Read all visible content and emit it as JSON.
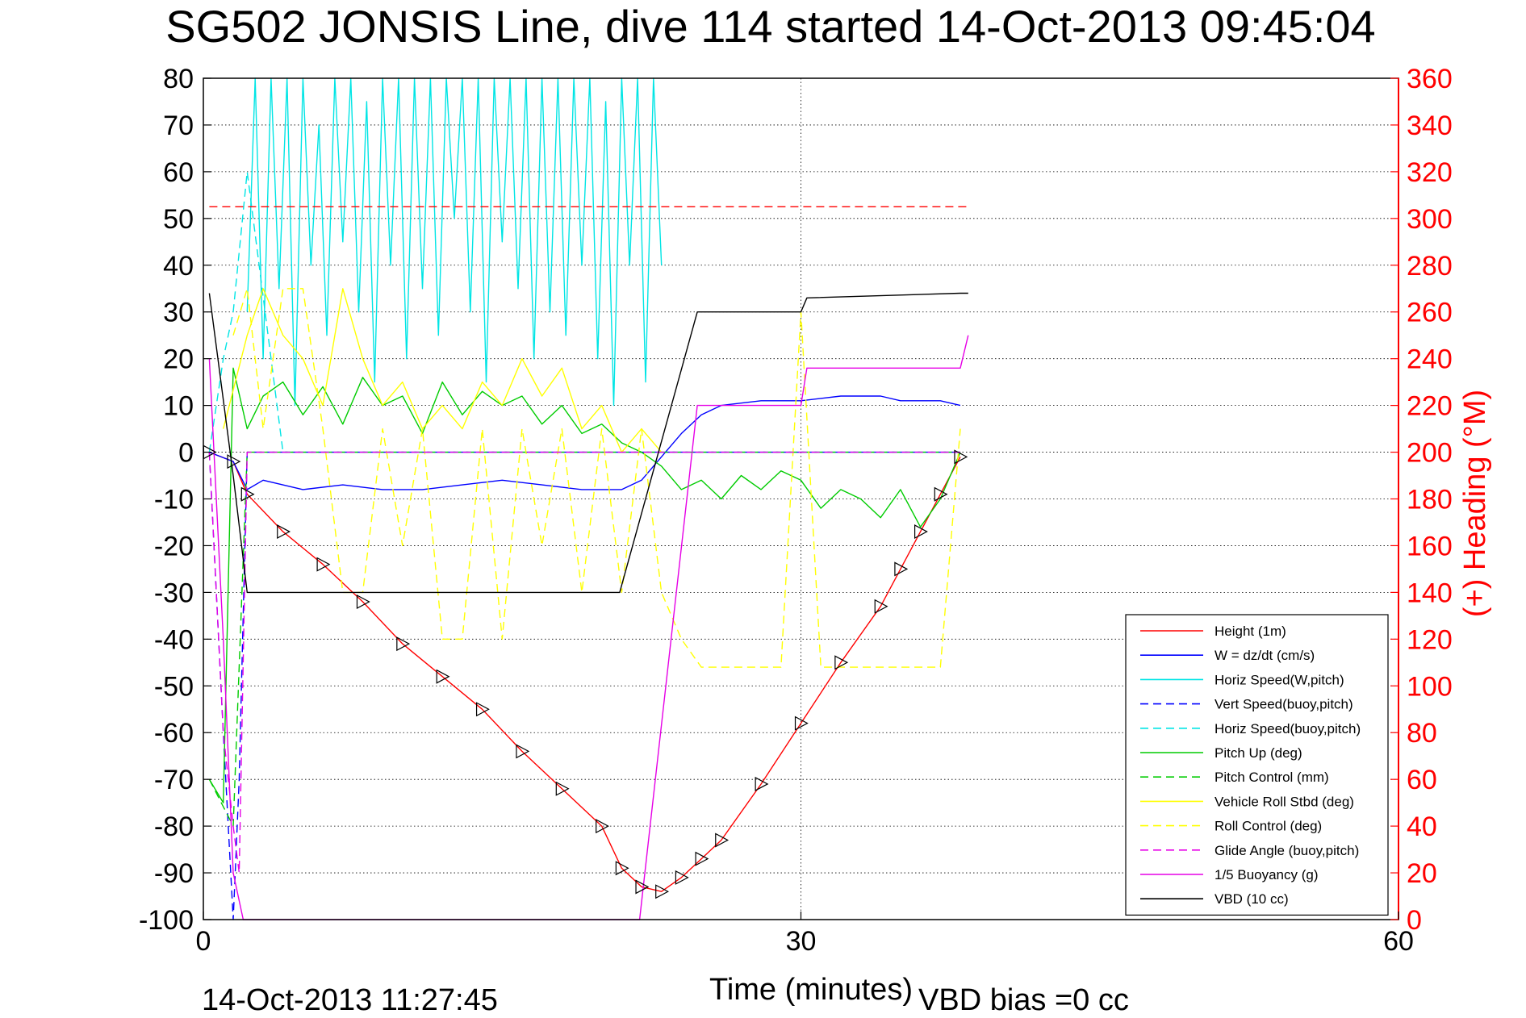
{
  "chart_data": {
    "type": "line",
    "title": "SG502 JONSIS Line, dive 114 started 14-Oct-2013 09:45:04",
    "xlabel": "Time (minutes)",
    "ylabel_right": "(+) Heading (°M)",
    "xlim": [
      0,
      60
    ],
    "ylim": [
      -100,
      80
    ],
    "ylim_right": [
      0,
      360
    ],
    "x_ticks": [
      "0",
      "30",
      "60"
    ],
    "y_ticks": [
      "80",
      "70",
      "60",
      "50",
      "40",
      "30",
      "20",
      "10",
      "0",
      "-10",
      "-20",
      "-30",
      "-40",
      "-50",
      "-60",
      "-70",
      "-80",
      "-90",
      "-100"
    ],
    "y_ticks_right": [
      "360",
      "340",
      "320",
      "300",
      "280",
      "260",
      "240",
      "220",
      "200",
      "180",
      "160",
      "140",
      "120",
      "100",
      "80",
      "60",
      "40",
      "20",
      "0"
    ],
    "grid": true,
    "legend_position": "lower-right",
    "footer_left": "14-Oct-2013 11:27:45",
    "footer_right": "VBD bias =0 cc",
    "series": [
      {
        "name": "Height (1m)",
        "color": "#ff0000",
        "style": "solid",
        "x": [
          0.3,
          1.5,
          2.2,
          4,
          6,
          8,
          10,
          12,
          14,
          16,
          18,
          20,
          21,
          22,
          23,
          24,
          25,
          26,
          28,
          30,
          32,
          34,
          35,
          36,
          37,
          38
        ],
        "y": [
          0,
          -2,
          -9,
          -17,
          -24,
          -32,
          -41,
          -48,
          -55,
          -64,
          -72,
          -80,
          -89,
          -93,
          -94,
          -91,
          -87,
          -83,
          -71,
          -58,
          -45,
          -33,
          -25,
          -17,
          -9,
          -1
        ]
      },
      {
        "name": "W = dz/dt (cm/s)",
        "color": "#0000ff",
        "style": "solid",
        "x": [
          0.3,
          1.5,
          2.2,
          3,
          5,
          7,
          9,
          11,
          13,
          15,
          17,
          19,
          21,
          22,
          23,
          24,
          25,
          26,
          28,
          30,
          32,
          34,
          35,
          36,
          37,
          38
        ],
        "y": [
          0,
          -2,
          -8,
          -6,
          -8,
          -7,
          -8,
          -8,
          -7,
          -6,
          -7,
          -8,
          -8,
          -6,
          -1,
          4,
          8,
          10,
          11,
          11,
          12,
          12,
          11,
          11,
          11,
          10
        ]
      },
      {
        "name": "Horiz Speed(W,pitch)",
        "color": "#00e5e5",
        "style": "solid",
        "x": [
          2.2,
          2.6,
          3.0,
          3.4,
          3.8,
          4.2,
          4.6,
          5.0,
          5.4,
          5.8,
          6.2,
          6.6,
          7.0,
          7.4,
          7.8,
          8.2,
          8.6,
          9.0,
          9.4,
          9.8,
          10.2,
          10.6,
          11.0,
          11.4,
          11.8,
          12.2,
          12.6,
          13.0,
          13.4,
          13.8,
          14.2,
          14.6,
          15.0,
          15.4,
          15.8,
          16.2,
          16.6,
          17.0,
          17.4,
          17.8,
          18.2,
          18.6,
          19.0,
          19.4,
          19.8,
          20.2,
          20.6,
          21.0,
          21.4,
          21.8,
          22.2,
          22.6,
          23.0
        ],
        "y": [
          30,
          80,
          20,
          80,
          35,
          80,
          10,
          80,
          40,
          70,
          25,
          80,
          45,
          80,
          30,
          75,
          15,
          80,
          40,
          80,
          20,
          80,
          35,
          80,
          25,
          80,
          50,
          80,
          30,
          80,
          15,
          80,
          45,
          80,
          35,
          80,
          20,
          80,
          30,
          80,
          25,
          80,
          40,
          80,
          20,
          75,
          10,
          80,
          40,
          80,
          15,
          80,
          40
        ]
      },
      {
        "name": "Vert Speed(buoy,pitch)",
        "color": "#0000ff",
        "style": "dashed",
        "x": [
          0.3,
          1.0,
          1.5,
          1.8,
          2.2,
          4,
          10,
          20,
          30,
          38
        ],
        "y": [
          0,
          -60,
          -100,
          -70,
          0,
          0,
          0,
          0,
          0,
          0
        ]
      },
      {
        "name": "Horiz Speed(buoy,pitch)",
        "color": "#00e5e5",
        "style": "dashed",
        "x": [
          0.3,
          1.0,
          1.5,
          2.2,
          4,
          10,
          20,
          30,
          38
        ],
        "y": [
          0,
          20,
          30,
          60,
          0,
          0,
          0,
          0,
          0
        ]
      },
      {
        "name": "Pitch Up (deg)",
        "color": "#00cc00",
        "style": "solid",
        "x": [
          0.3,
          1.0,
          1.5,
          2.2,
          3,
          4,
          5,
          6,
          7,
          8,
          9,
          10,
          11,
          12,
          13,
          14,
          15,
          16,
          17,
          18,
          19,
          20,
          21,
          22,
          23,
          24,
          25,
          26,
          27,
          28,
          29,
          30,
          31,
          32,
          33,
          34,
          35,
          36,
          37,
          38
        ],
        "y": [
          -70,
          -75,
          18,
          5,
          12,
          15,
          8,
          14,
          6,
          16,
          10,
          12,
          4,
          15,
          8,
          13,
          10,
          12,
          6,
          10,
          4,
          6,
          2,
          0,
          -3,
          -8,
          -6,
          -10,
          -5,
          -8,
          -4,
          -6,
          -12,
          -8,
          -10,
          -14,
          -8,
          -16,
          -10,
          0
        ]
      },
      {
        "name": "Pitch Control (mm)",
        "color": "#00cc00",
        "style": "dashed",
        "x": [
          0.3,
          1.5,
          2.2,
          4,
          10,
          20,
          30,
          38
        ],
        "y": [
          -70,
          -80,
          0,
          0,
          0,
          0,
          0,
          0
        ]
      },
      {
        "name": "Vehicle Roll Stbd (deg)",
        "color": "#ffff00",
        "style": "solid",
        "x": [
          1.0,
          2.2,
          3.0,
          4.0,
          5.0,
          6.0,
          7.0,
          8.0,
          9.0,
          10.0,
          11.0,
          12.0,
          13.0,
          14.0,
          15.0,
          16.0,
          17.0,
          18.0,
          19.0,
          20.0,
          21.0,
          22.0,
          23.0
        ],
        "y": [
          5,
          25,
          35,
          25,
          20,
          10,
          35,
          20,
          10,
          15,
          5,
          10,
          5,
          15,
          10,
          20,
          12,
          18,
          5,
          10,
          0,
          5,
          0
        ]
      },
      {
        "name": "Roll Control (deg)",
        "color": "#ffff00",
        "style": "dashed",
        "x": [
          1.5,
          2.2,
          3.0,
          4.0,
          5.0,
          6.0,
          7.0,
          8.0,
          9.0,
          10.0,
          11.0,
          12.0,
          13.0,
          14.0,
          15.0,
          16.0,
          17.0,
          18.0,
          19.0,
          20.0,
          21.0,
          22.0,
          23.0,
          24.0,
          25.0,
          26.0,
          27.0,
          28.0,
          29.0,
          30.0,
          31.0,
          32.0,
          33.0,
          34.0,
          35.0,
          36.0,
          37.0,
          38.0
        ],
        "y": [
          25,
          35,
          5,
          35,
          35,
          5,
          -30,
          -30,
          5,
          -20,
          5,
          -40,
          -40,
          5,
          -40,
          5,
          -20,
          5,
          -30,
          5,
          -30,
          5,
          -30,
          -40,
          -46,
          -46,
          -46,
          -46,
          -46,
          30,
          -46,
          -46,
          -46,
          -46,
          -46,
          -46,
          -46,
          5
        ]
      },
      {
        "name": "Glide Angle (buoy,pitch)",
        "color": "#e600e6",
        "style": "dashed",
        "x": [
          0.3,
          1.0,
          1.5,
          1.8,
          2.2,
          4,
          10,
          20,
          30,
          38
        ],
        "y": [
          0,
          -60,
          -80,
          -90,
          0,
          0,
          0,
          0,
          0,
          0
        ]
      },
      {
        "name": "1/5 Buoyancy (g)",
        "color": "#e600e6",
        "style": "solid",
        "x": [
          0.3,
          1.0,
          1.5,
          2.0,
          21.9,
          24.8,
          30.0,
          30.3,
          38.0,
          38.4
        ],
        "y": [
          20,
          -40,
          -90,
          -100,
          -100,
          10,
          10,
          18,
          18,
          25
        ]
      },
      {
        "name": "VBD (10 cc)",
        "color": "#000000",
        "style": "solid",
        "x": [
          0.3,
          1.5,
          2.2,
          20.9,
          24.8,
          30.0,
          30.3,
          38.0,
          38.4
        ],
        "y": [
          34,
          -5,
          -30,
          -30,
          30,
          30,
          33,
          34,
          34
        ]
      },
      {
        "name": "Heading (°M)",
        "color": "#ff0000",
        "style": "dashed",
        "axis": "right",
        "x": [
          0.3,
          38.4
        ],
        "y": [
          305,
          305
        ]
      }
    ]
  }
}
